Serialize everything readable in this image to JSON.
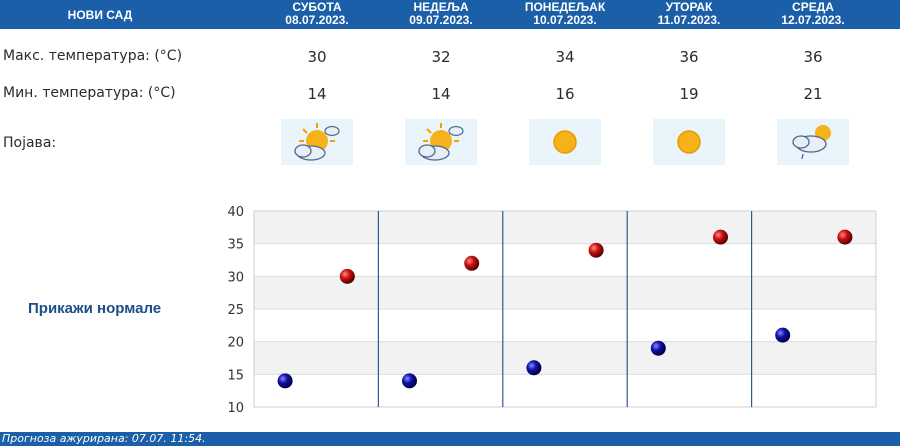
{
  "header": {
    "city": "НОВИ САД",
    "days": [
      {
        "name": "СУБОТА",
        "date": "08.07.2023."
      },
      {
        "name": "НЕДЕЉА",
        "date": "09.07.2023."
      },
      {
        "name": "ПОНЕДЕЉАК",
        "date": "10.07.2023."
      },
      {
        "name": "УТОРАК",
        "date": "11.07.2023."
      },
      {
        "name": "СРЕДА",
        "date": "12.07.2023."
      }
    ]
  },
  "rows": {
    "max_label": "Макс. температура: (°C)",
    "min_label": "Мин. температура: (°C)",
    "phenomenon_label": "Појава:"
  },
  "max_temps": [
    "30",
    "32",
    "34",
    "36",
    "36"
  ],
  "min_temps": [
    "14",
    "14",
    "16",
    "19",
    "21"
  ],
  "weather_icons": [
    "sun-behind-cloud-icon",
    "sun-behind-cloud-icon",
    "sun-icon",
    "sun-icon",
    "cloud-sun-rain-icon"
  ],
  "colors": {
    "header_bg": "#1a5fa8",
    "max_marker": "#cc1111",
    "min_marker": "#1111aa",
    "normals_link": "#1e4e86"
  },
  "normals_link": "Прикажи нормале",
  "chart_data": {
    "type": "scatter",
    "categories": [
      "08.07.2023.",
      "09.07.2023.",
      "10.07.2023.",
      "11.07.2023.",
      "12.07.2023."
    ],
    "series": [
      {
        "values": [
          30,
          32,
          34,
          36,
          36
        ]
      },
      {
        "values": [
          14,
          14,
          16,
          19,
          21
        ]
      }
    ],
    "ylim": [
      10,
      40
    ],
    "yticks": [
      10,
      15,
      20,
      25,
      30,
      35,
      40
    ],
    "grid": true
  },
  "footer": {
    "updated": "Прогноза ажурирана:  07.07. 11:54."
  }
}
